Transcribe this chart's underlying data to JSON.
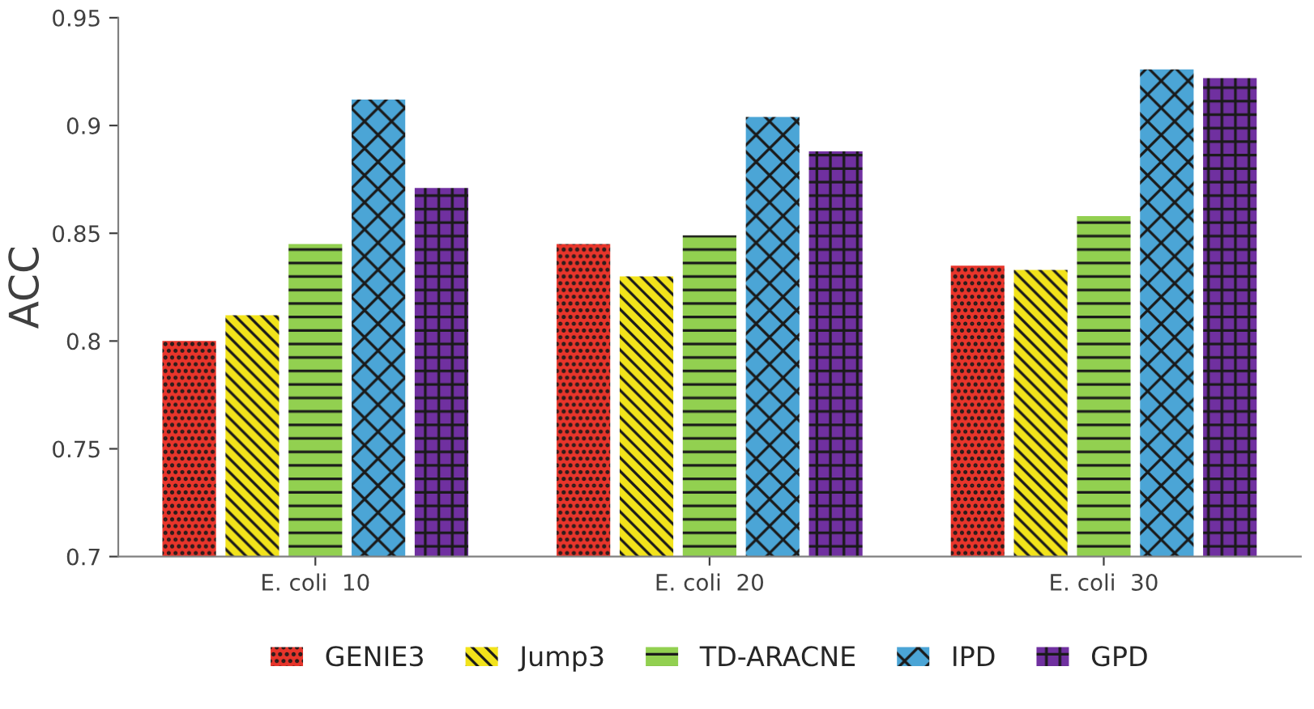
{
  "chart_data": {
    "type": "bar",
    "ylabel": "ACC",
    "categories": [
      "E. coli  10",
      "E. coli  20",
      "E. coli  30"
    ],
    "series": [
      {
        "name": "GENIE3",
        "color": "#e8352b",
        "values": [
          0.8,
          0.845,
          0.835
        ]
      },
      {
        "name": "Jump3",
        "color": "#f2e31b",
        "values": [
          0.812,
          0.83,
          0.833
        ]
      },
      {
        "name": "TD-ARACNE",
        "color": "#92d050",
        "values": [
          0.845,
          0.849,
          0.858
        ]
      },
      {
        "name": "IPD",
        "color": "#4ba5d6",
        "values": [
          0.912,
          0.904,
          0.926
        ]
      },
      {
        "name": "GPD",
        "color": "#7030a0",
        "values": [
          0.871,
          0.888,
          0.922
        ]
      }
    ],
    "ylim": [
      0.7,
      0.95
    ],
    "yticks": [
      0.7,
      0.75,
      0.8,
      0.85,
      0.9,
      0.95
    ],
    "grid": false,
    "legend": "bottom"
  }
}
